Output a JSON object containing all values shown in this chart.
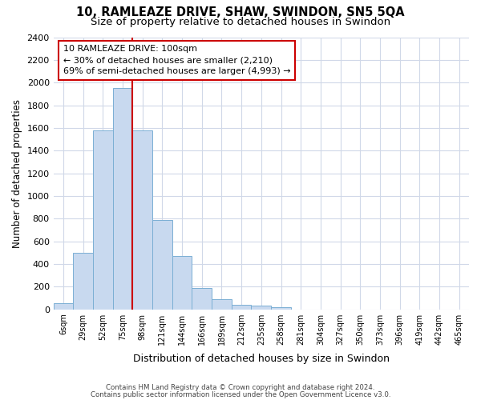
{
  "title1": "10, RAMLEAZE DRIVE, SHAW, SWINDON, SN5 5QA",
  "title2": "Size of property relative to detached houses in Swindon",
  "xlabel": "Distribution of detached houses by size in Swindon",
  "ylabel": "Number of detached properties",
  "categories": [
    "6sqm",
    "29sqm",
    "52sqm",
    "75sqm",
    "98sqm",
    "121sqm",
    "144sqm",
    "166sqm",
    "189sqm",
    "212sqm",
    "235sqm",
    "258sqm",
    "281sqm",
    "304sqm",
    "327sqm",
    "350sqm",
    "373sqm",
    "396sqm",
    "419sqm",
    "442sqm",
    "465sqm"
  ],
  "values": [
    55,
    500,
    1580,
    1950,
    1580,
    790,
    470,
    185,
    90,
    40,
    30,
    20,
    0,
    0,
    0,
    0,
    0,
    0,
    0,
    0,
    0
  ],
  "bar_color": "#c8d9ef",
  "bar_edge_color": "#7bafd4",
  "vline_x_index": 4,
  "annotation_text": "10 RAMLEAZE DRIVE: 100sqm\n← 30% of detached houses are smaller (2,210)\n69% of semi-detached houses are larger (4,993) →",
  "annotation_box_color": "#ffffff",
  "annotation_box_edge": "#cc0000",
  "vline_color": "#cc0000",
  "ylim": [
    0,
    2400
  ],
  "yticks": [
    0,
    200,
    400,
    600,
    800,
    1000,
    1200,
    1400,
    1600,
    1800,
    2000,
    2200,
    2400
  ],
  "footer1": "Contains HM Land Registry data © Crown copyright and database right 2024.",
  "footer2": "Contains public sector information licensed under the Open Government Licence v3.0.",
  "bg_color": "#ffffff",
  "plot_bg_color": "#ffffff",
  "grid_color": "#d0d8e8",
  "title1_fontsize": 10.5,
  "title2_fontsize": 9.5
}
